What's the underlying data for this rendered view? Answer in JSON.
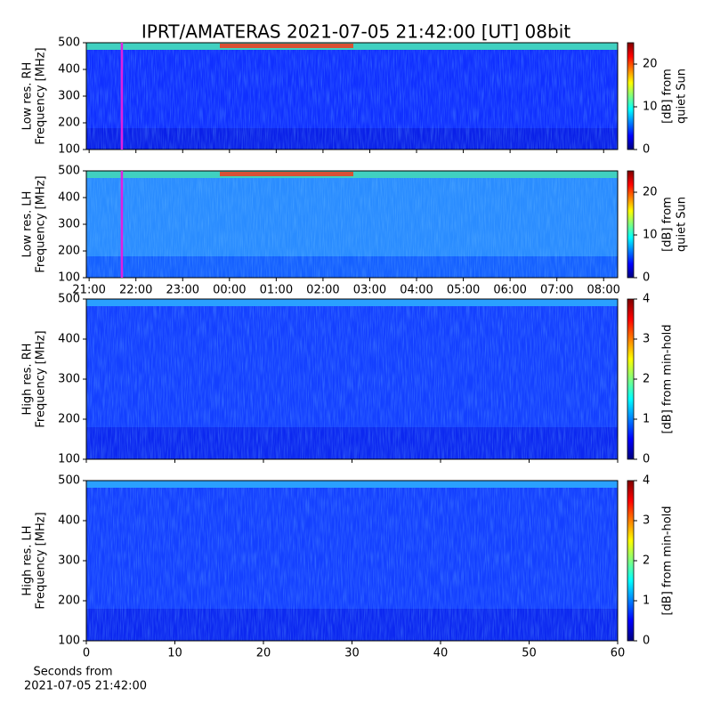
{
  "chart_data": [
    {
      "type": "heatmap",
      "title": "IPRT/AMATERAS 2021-07-05 21:42:00 [UT]   08bit",
      "ylabel": [
        "Low res. RH",
        "Frequency [MHz]"
      ],
      "ylim": [
        100,
        500
      ],
      "yticks": [
        100,
        200,
        300,
        400,
        500
      ],
      "xlim": [
        20.94,
        32.3
      ],
      "marker_x": 21.7,
      "marker_color": "#e020e0",
      "clim": [
        0,
        25
      ],
      "cticks": [
        0,
        10,
        20
      ],
      "clabel": [
        "[dB] from",
        "quiet Sun"
      ],
      "colormap": "jet"
    },
    {
      "type": "heatmap",
      "ylabel": [
        "Low res. LH",
        "Frequency [MHz]"
      ],
      "ylim": [
        100,
        500
      ],
      "yticks": [
        100,
        200,
        300,
        400,
        500
      ],
      "xlim": [
        20.94,
        32.3
      ],
      "xticks": [
        {
          "value": 21,
          "label": "21:00"
        },
        {
          "value": 22,
          "label": "22:00"
        },
        {
          "value": 23,
          "label": "23:00"
        },
        {
          "value": 24,
          "label": "00:00"
        },
        {
          "value": 25,
          "label": "01:00"
        },
        {
          "value": 26,
          "label": "02:00"
        },
        {
          "value": 27,
          "label": "03:00"
        },
        {
          "value": 28,
          "label": "04:00"
        },
        {
          "value": 29,
          "label": "05:00"
        },
        {
          "value": 30,
          "label": "06:00"
        },
        {
          "value": 31,
          "label": "07:00"
        },
        {
          "value": 32,
          "label": "08:00"
        }
      ],
      "marker_x": 21.7,
      "marker_color": "#e020e0",
      "clim": [
        0,
        25
      ],
      "cticks": [
        0,
        10,
        20
      ],
      "clabel": [
        "[dB] from",
        "quiet Sun"
      ],
      "colormap": "jet"
    },
    {
      "type": "heatmap",
      "ylabel": [
        "High res. RH",
        "Frequency [MHz]"
      ],
      "ylim": [
        100,
        500
      ],
      "yticks": [
        100,
        200,
        300,
        400,
        500
      ],
      "xlim": [
        0,
        60
      ],
      "clim": [
        0,
        4
      ],
      "cticks": [
        0,
        1,
        2,
        3,
        4
      ],
      "clabel": [
        "[dB] from min-hold"
      ],
      "colormap": "jet"
    },
    {
      "type": "heatmap",
      "ylabel": [
        "High res. LH",
        "Frequency [MHz]"
      ],
      "ylim": [
        100,
        500
      ],
      "yticks": [
        100,
        200,
        300,
        400,
        500
      ],
      "xlim": [
        0,
        60
      ],
      "xticks": [
        0,
        10,
        20,
        30,
        40,
        50,
        60
      ],
      "xlabel": [
        "Seconds from",
        "2021-07-05 21:42:00"
      ],
      "clim": [
        0,
        4
      ],
      "cticks": [
        0,
        1,
        2,
        3,
        4
      ],
      "clabel": [
        "[dB] from min-hold"
      ],
      "colormap": "jet"
    }
  ]
}
